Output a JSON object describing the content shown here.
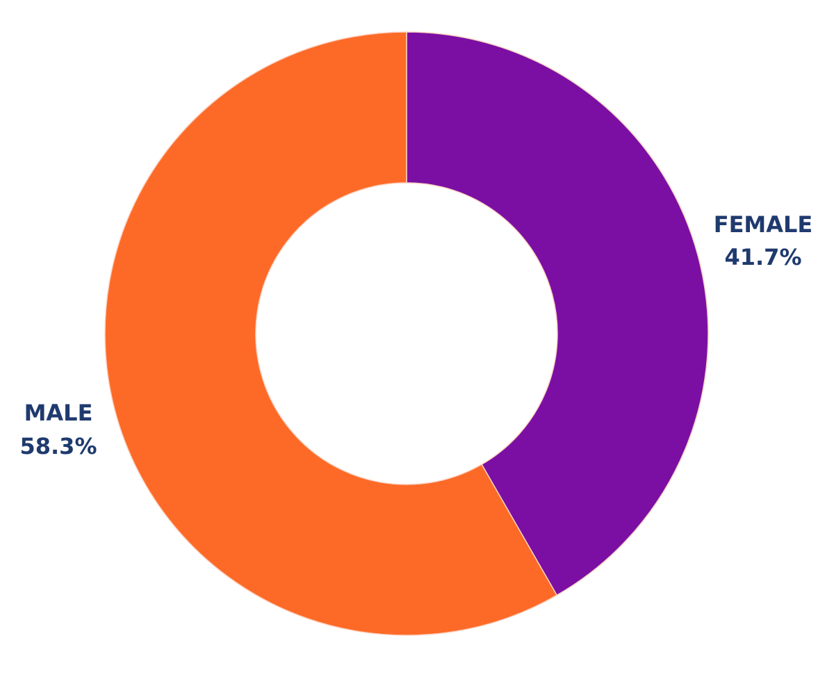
{
  "chart_data": {
    "type": "pie",
    "variant": "donut",
    "title": "",
    "slices": [
      {
        "label": "FEMALE",
        "value": 41.7,
        "value_label": "41.7%",
        "color": "#7B0FA3"
      },
      {
        "label": "MALE",
        "value": 58.3,
        "value_label": "58.3%",
        "color": "#FD6A27"
      }
    ],
    "label_color": "#1F3A6E",
    "separator_color": "#FBD3C2",
    "start": "12 o'clock",
    "direction": "clockwise",
    "legend": "none (labels beside slices)"
  }
}
